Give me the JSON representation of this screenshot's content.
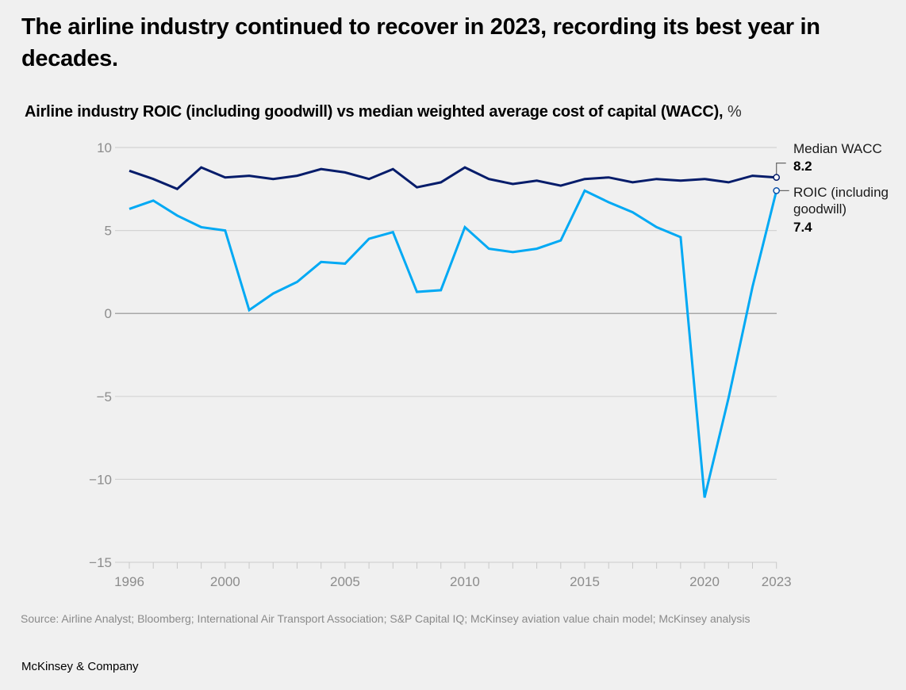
{
  "header": {
    "title": "The airline industry continued to recover in 2023, recording its best year in decades.",
    "subtitle_bold": "Airline industry ROIC (including goodwill) vs median weighted average cost of capital (WACC),",
    "subtitle_unit": " %"
  },
  "footer": {
    "source": "Source: Airline Analyst; Bloomberg; International Air Transport Association; S&P Capital IQ; McKinsey aviation value chain model; McKinsey analysis",
    "brand": "McKinsey & Company"
  },
  "chart_data": {
    "type": "line",
    "title": "Airline industry ROIC (including goodwill) vs median weighted average cost of capital (WACC), %",
    "xlabel": "",
    "ylabel": "%",
    "x": [
      1996,
      1997,
      1998,
      1999,
      2000,
      2001,
      2002,
      2003,
      2004,
      2005,
      2006,
      2007,
      2008,
      2009,
      2010,
      2011,
      2012,
      2013,
      2014,
      2015,
      2016,
      2017,
      2018,
      2019,
      2020,
      2021,
      2022,
      2023
    ],
    "x_ticks": [
      1996,
      2000,
      2005,
      2010,
      2015,
      2020,
      2023
    ],
    "xlim": [
      1996,
      2023
    ],
    "ylim": [
      -15,
      10
    ],
    "y_ticks": [
      10,
      5,
      0,
      -5,
      -10,
      -15
    ],
    "y_tick_labels": [
      "10",
      "5",
      "0",
      "−5",
      "−10",
      "−15"
    ],
    "grid": true,
    "legend": "direct labels at right end of lines",
    "series": [
      {
        "name": "Median WACC",
        "color": "#051c6a",
        "end_label": "Median WACC",
        "end_value_label": "8.2",
        "values": [
          8.6,
          8.1,
          7.5,
          8.8,
          8.2,
          8.3,
          8.1,
          8.3,
          8.7,
          8.5,
          8.1,
          8.7,
          7.6,
          7.9,
          8.8,
          8.1,
          7.8,
          8.0,
          7.7,
          8.1,
          8.2,
          7.9,
          8.1,
          8.0,
          8.1,
          7.9,
          8.3,
          8.2
        ]
      },
      {
        "name": "ROIC (including goodwill)",
        "color": "#00a9f4",
        "end_label_lines": [
          "ROIC (including",
          "goodwill)"
        ],
        "end_value_label": "7.4",
        "values": [
          6.3,
          6.8,
          5.9,
          5.2,
          5.0,
          0.2,
          1.2,
          1.9,
          3.1,
          3.0,
          4.5,
          4.9,
          1.3,
          1.4,
          5.2,
          3.9,
          3.7,
          3.9,
          4.4,
          7.4,
          6.7,
          6.1,
          5.2,
          4.6,
          -11.1,
          -5.1,
          1.6,
          7.4
        ]
      }
    ]
  }
}
